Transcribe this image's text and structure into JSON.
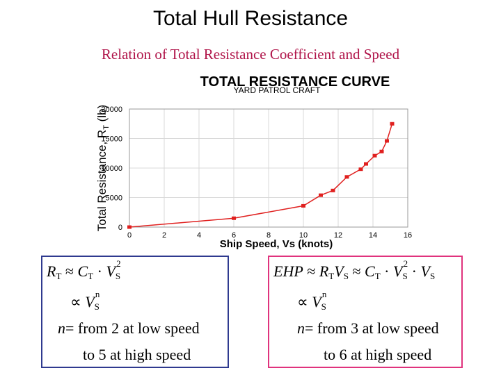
{
  "slide": {
    "title": "Total Hull Resistance",
    "subtitle": "Relation of Total Resistance Coefficient and Speed"
  },
  "chart_data": {
    "type": "line",
    "title": "TOTAL RESISTANCE CURVE",
    "subtitle": "YARD PATROL CRAFT",
    "xlabel": "Ship Speed, Vs (knots)",
    "ylabel": "Total Resistance, R_T (lb)",
    "xlim": [
      0,
      16
    ],
    "ylim": [
      0,
      20000
    ],
    "x_ticks": [
      0,
      2,
      4,
      6,
      8,
      10,
      12,
      14,
      16
    ],
    "y_ticks": [
      0,
      5000,
      10000,
      15000,
      20000
    ],
    "y_tick_labels": [
      "0",
      "5000",
      "10000",
      "15000",
      "20000"
    ],
    "grid": true,
    "line_color": "#e0201f",
    "series": [
      {
        "x": [
          0,
          6,
          10,
          11,
          11.7,
          12.5,
          13.3,
          13.6,
          14.1,
          14.5,
          14.8,
          15.1
        ],
        "values": [
          0,
          1500,
          3600,
          5400,
          6200,
          8500,
          9800,
          10700,
          12100,
          12800,
          14600,
          17500
        ]
      }
    ]
  },
  "equations": {
    "left": {
      "line1_lhs": "R",
      "line1_lhs_sub": "T",
      "line1_rel": "≈",
      "line1_c": "C",
      "line1_c_sub": "T",
      "line1_dot": "·",
      "line1_v": "V",
      "line1_v_sub": "S",
      "line1_v_sup": "2",
      "line2_prop": "∝",
      "line2_v": "V",
      "line2_v_sub": "S",
      "line2_v_sup": "n",
      "line3_n": "n",
      "line3_text": "= from 2 at low speed",
      "line4_text": "to 5 at high speed"
    },
    "right": {
      "line1_lhs": "EHP",
      "line1_rel": "≈",
      "line1_r": "R",
      "line1_r_sub": "T",
      "line1_v": "V",
      "line1_v_sub": "S",
      "line1_rel2": "≈",
      "line1_c": "C",
      "line1_c_sub": "T",
      "line1_dot": "·",
      "line1_v2": "V",
      "line1_v2_sub": "S",
      "line1_v2_sup": "2",
      "line1_dot2": "·",
      "line1_v3": "V",
      "line1_v3_sub": "S",
      "line2_prop": "∝",
      "line2_v": "V",
      "line2_v_sub": "S",
      "line2_v_sup": "n",
      "line3_n": "n",
      "line3_text": "= from 3 at low speed",
      "line4_text": "to 6 at high speed"
    }
  }
}
